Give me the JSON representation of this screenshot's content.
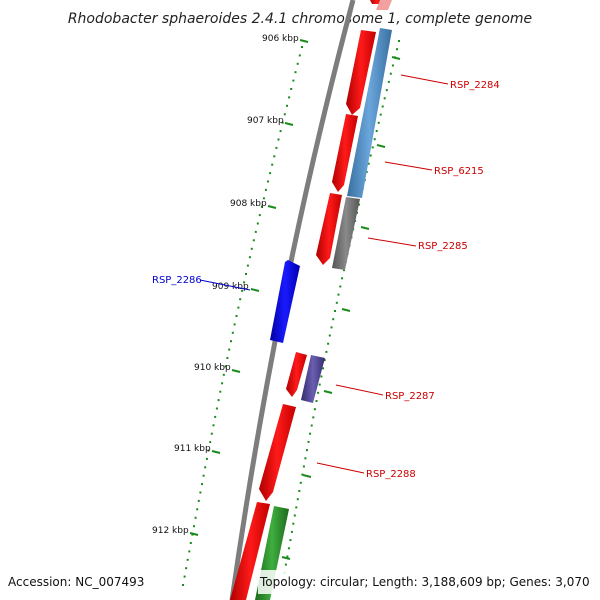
{
  "title": "Rhodobacter sphaeroides 2.4.1 chromosome 1, complete genome",
  "footer": {
    "accession": "Accession: NC_007493",
    "summary": "Topology: circular; Length: 3,188,609 bp; Genes: 3,070"
  },
  "colors": {
    "backbone": "#7d7d7d",
    "forward_gene": "#ff0000",
    "reverse_gene_label": "#0000cc",
    "forward_gene_label": "#cc0000",
    "tick": "#1a8a1a",
    "cog_blue": "#4f8fcc",
    "cog_gray": "#6e6e6e",
    "cog_purple": "#4a3f8f",
    "cog_green": "#2a8a2a"
  },
  "ticks": [
    {
      "label": "906 kbp"
    },
    {
      "label": "907 kbp"
    },
    {
      "label": "908 kbp"
    },
    {
      "label": "909 kbp"
    },
    {
      "label": "910 kbp"
    },
    {
      "label": "911 kbp"
    },
    {
      "label": "912 kbp"
    }
  ],
  "genes": [
    {
      "label": "RSP_2284",
      "strand": "forward"
    },
    {
      "label": "RSP_6215",
      "strand": "forward"
    },
    {
      "label": "RSP_2285",
      "strand": "forward"
    },
    {
      "label": "RSP_2286",
      "strand": "reverse"
    },
    {
      "label": "RSP_2287",
      "strand": "forward"
    },
    {
      "label": "RSP_2288",
      "strand": "forward"
    }
  ]
}
